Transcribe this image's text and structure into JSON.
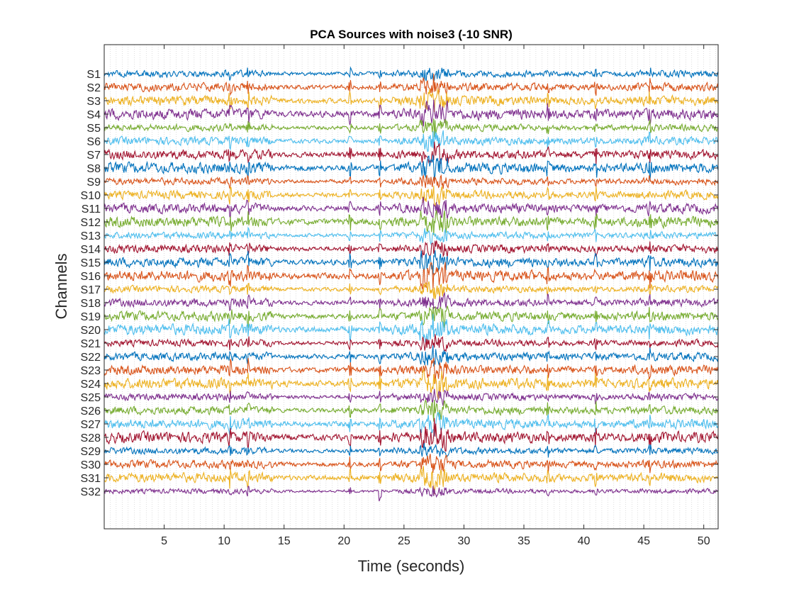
{
  "chart_data": {
    "type": "line",
    "title": "PCA Sources with noise3 (-10 SNR)",
    "xlabel": "Time (seconds)",
    "ylabel": "Channels",
    "xlim": [
      0,
      51.2
    ],
    "xticks": [
      5,
      10,
      15,
      20,
      25,
      30,
      35,
      40,
      45,
      50
    ],
    "grid": true,
    "legend": "none",
    "series": [
      {
        "name": "S1",
        "color": "#0072BD"
      },
      {
        "name": "S2",
        "color": "#D95319"
      },
      {
        "name": "S3",
        "color": "#EDB120"
      },
      {
        "name": "S4",
        "color": "#7E2F8E"
      },
      {
        "name": "S5",
        "color": "#77AC30"
      },
      {
        "name": "S6",
        "color": "#4DBEEE"
      },
      {
        "name": "S7",
        "color": "#A2142F"
      },
      {
        "name": "S8",
        "color": "#0072BD"
      },
      {
        "name": "S9",
        "color": "#D95319"
      },
      {
        "name": "S10",
        "color": "#EDB120"
      },
      {
        "name": "S11",
        "color": "#7E2F8E"
      },
      {
        "name": "S12",
        "color": "#77AC30"
      },
      {
        "name": "S13",
        "color": "#4DBEEE"
      },
      {
        "name": "S14",
        "color": "#A2142F"
      },
      {
        "name": "S15",
        "color": "#0072BD"
      },
      {
        "name": "S16",
        "color": "#D95319"
      },
      {
        "name": "S17",
        "color": "#EDB120"
      },
      {
        "name": "S18",
        "color": "#7E2F8E"
      },
      {
        "name": "S19",
        "color": "#77AC30"
      },
      {
        "name": "S20",
        "color": "#4DBEEE"
      },
      {
        "name": "S21",
        "color": "#A2142F"
      },
      {
        "name": "S22",
        "color": "#0072BD"
      },
      {
        "name": "S23",
        "color": "#D95319"
      },
      {
        "name": "S24",
        "color": "#EDB120"
      },
      {
        "name": "S25",
        "color": "#7E2F8E"
      },
      {
        "name": "S26",
        "color": "#77AC30"
      },
      {
        "name": "S27",
        "color": "#4DBEEE"
      },
      {
        "name": "S28",
        "color": "#A2142F"
      },
      {
        "name": "S29",
        "color": "#0072BD"
      },
      {
        "name": "S30",
        "color": "#D95319"
      },
      {
        "name": "S31",
        "color": "#EDB120"
      },
      {
        "name": "S32",
        "color": "#7E2F8E"
      }
    ],
    "events_seconds": [
      10.5,
      12,
      20.5,
      23,
      27.5,
      37,
      41,
      45.5
    ]
  }
}
